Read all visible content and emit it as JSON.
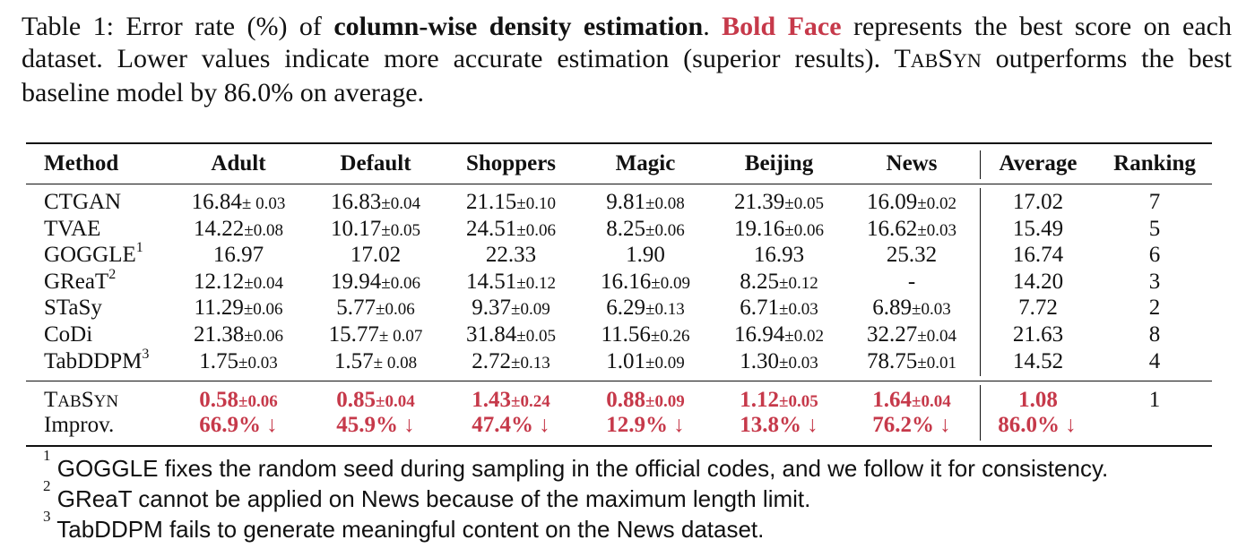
{
  "caption": {
    "table_label": "Table 1: Error rate (%) of ",
    "bold_title": "column-wise density estimation",
    "after_title": ". ",
    "bold_face_label": "Bold Face",
    "after_bold_face": " represents the best score on each dataset. Lower values indicate more accurate estimation (superior results). ",
    "tabsyn_T": "T",
    "tabsyn_AB": "AB",
    "tabsyn_S": "S",
    "tabsyn_YN": "YN",
    "ending": " outperforms the best baseline model by 86.0% on average."
  },
  "table": {
    "headers": [
      "Method",
      "Adult",
      "Default",
      "Shoppers",
      "Magic",
      "Beijing",
      "News",
      "Average",
      "Ranking"
    ],
    "rows": [
      {
        "method": "CTGAN",
        "sup": "",
        "cells": [
          {
            "v": "16.84",
            "s": "± 0.03"
          },
          {
            "v": "16.83",
            "s": "±0.04"
          },
          {
            "v": "21.15",
            "s": "±0.10"
          },
          {
            "v": "9.81",
            "s": "±0.08"
          },
          {
            "v": "21.39",
            "s": "±0.05"
          },
          {
            "v": "16.09",
            "s": "±0.02"
          }
        ],
        "average": "17.02",
        "ranking": "7"
      },
      {
        "method": "TVAE",
        "sup": "",
        "cells": [
          {
            "v": "14.22",
            "s": "±0.08"
          },
          {
            "v": "10.17",
            "s": "±0.05"
          },
          {
            "v": "24.51",
            "s": "±0.06"
          },
          {
            "v": "8.25",
            "s": "±0.06"
          },
          {
            "v": "19.16",
            "s": "±0.06"
          },
          {
            "v": "16.62",
            "s": "±0.03"
          }
        ],
        "average": "15.49",
        "ranking": "5"
      },
      {
        "method": "GOGGLE",
        "sup": "1",
        "cells": [
          {
            "v": "16.97",
            "s": ""
          },
          {
            "v": "17.02",
            "s": ""
          },
          {
            "v": "22.33",
            "s": ""
          },
          {
            "v": "1.90",
            "s": ""
          },
          {
            "v": "16.93",
            "s": ""
          },
          {
            "v": "25.32",
            "s": ""
          }
        ],
        "average": "16.74",
        "ranking": "6"
      },
      {
        "method": "GReaT",
        "sup": "2",
        "cells": [
          {
            "v": "12.12",
            "s": "±0.04"
          },
          {
            "v": "19.94",
            "s": "±0.06"
          },
          {
            "v": "14.51",
            "s": "±0.12"
          },
          {
            "v": "16.16",
            "s": "±0.09"
          },
          {
            "v": "8.25",
            "s": "±0.12"
          },
          {
            "v": "-",
            "s": ""
          }
        ],
        "average": "14.20",
        "ranking": "3"
      },
      {
        "method": "STaSy",
        "sup": "",
        "cells": [
          {
            "v": "11.29",
            "s": "±0.06"
          },
          {
            "v": "5.77",
            "s": "±0.06"
          },
          {
            "v": "9.37",
            "s": "±0.09"
          },
          {
            "v": "6.29",
            "s": "±0.13"
          },
          {
            "v": "6.71",
            "s": "±0.03"
          },
          {
            "v": "6.89",
            "s": "±0.03"
          }
        ],
        "average": "7.72",
        "ranking": "2"
      },
      {
        "method": "CoDi",
        "sup": "",
        "cells": [
          {
            "v": "21.38",
            "s": "±0.06"
          },
          {
            "v": "15.77",
            "s": "± 0.07"
          },
          {
            "v": "31.84",
            "s": "±0.05"
          },
          {
            "v": "11.56",
            "s": "±0.26"
          },
          {
            "v": "16.94",
            "s": "±0.02"
          },
          {
            "v": "32.27",
            "s": "±0.04"
          }
        ],
        "average": "21.63",
        "ranking": "8"
      },
      {
        "method": "TabDDPM",
        "sup": "3",
        "cells": [
          {
            "v": "1.75",
            "s": "±0.03"
          },
          {
            "v": "1.57",
            "s": "± 0.08"
          },
          {
            "v": "2.72",
            "s": "±0.13"
          },
          {
            "v": "1.01",
            "s": "±0.09"
          },
          {
            "v": "1.30",
            "s": "±0.03"
          },
          {
            "v": "78.75",
            "s": "±0.01"
          }
        ],
        "average": "14.52",
        "ranking": "4"
      }
    ],
    "tabsyn_row": {
      "method_T": "T",
      "method_AB": "AB",
      "method_S": "S",
      "method_YN": "YN",
      "cells": [
        {
          "v": "0.58",
          "s": "±0.06"
        },
        {
          "v": "0.85",
          "s": "±0.04"
        },
        {
          "v": "1.43",
          "s": "±0.24"
        },
        {
          "v": "0.88",
          "s": "±0.09"
        },
        {
          "v": "1.12",
          "s": "±0.05"
        },
        {
          "v": "1.64",
          "s": "±0.04"
        }
      ],
      "average": "1.08",
      "ranking": "1"
    },
    "improv_row": {
      "method": "Improv.",
      "cells": [
        "66.9% ↓",
        "45.9% ↓",
        "47.4% ↓",
        "12.9% ↓",
        "13.8% ↓",
        "76.2% ↓"
      ],
      "average": "86.0% ↓"
    }
  },
  "footnotes": [
    {
      "mark": "1",
      "text": " GOGGLE fixes the random seed during sampling in the official codes, and we follow it for consistency."
    },
    {
      "mark": "2",
      "text": " GReaT cannot be applied on News because of the maximum length limit."
    },
    {
      "mark": "3",
      "text": " TabDDPM fails to generate meaningful content on the News dataset."
    }
  ],
  "colors": {
    "highlight": "#c6394a",
    "text": "#111111"
  }
}
